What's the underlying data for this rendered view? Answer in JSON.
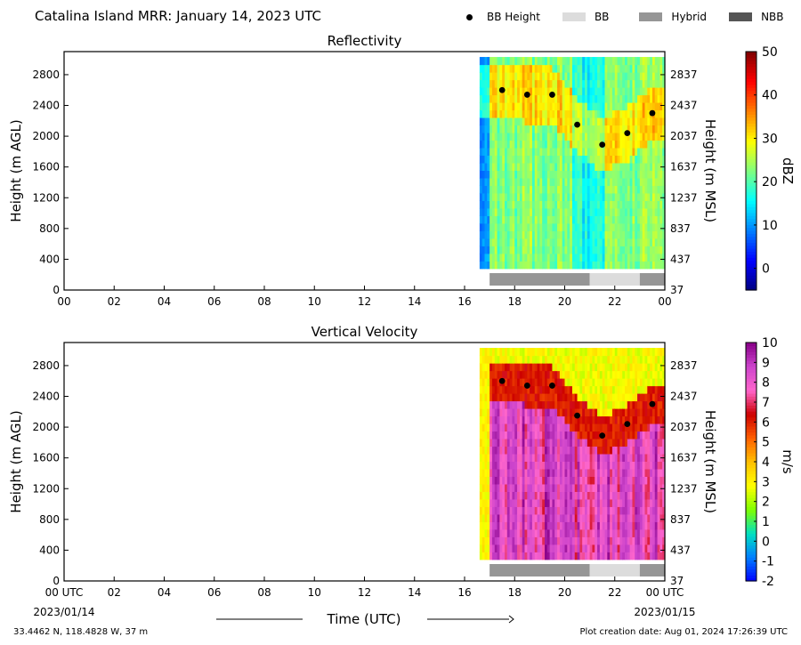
{
  "header": {
    "title": "Catalina Island MRR:  January 14, 2023 UTC"
  },
  "legend": [
    {
      "label": "BB Height",
      "kind": "dot",
      "color": "#000000"
    },
    {
      "label": "BB",
      "kind": "swatch",
      "color": "#dcdcdc"
    },
    {
      "label": "Hybrid",
      "kind": "swatch",
      "color": "#969696"
    },
    {
      "label": "NBB",
      "kind": "swatch",
      "color": "#555555"
    }
  ],
  "footer": {
    "location": "33.4462 N, 118.4828 W, 37 m",
    "created": "Plot creation date: Aug 01, 2024 17:26:39 UTC",
    "xlabel": "Time (UTC)",
    "start_label": "00 UTC",
    "start_date": "2023/01/14",
    "end_label": "00 UTC",
    "end_date": "2023/01/15"
  },
  "chart_data": [
    {
      "type": "heatmap",
      "title": "Reflectivity",
      "ylabel": "Height (m AGL)",
      "ylabel_right": "Height (m MSL)",
      "colorbar_label": "dBZ",
      "colorbar_ticks": [
        0,
        10,
        20,
        30,
        40,
        50
      ],
      "colorbar_range": [
        -5,
        50
      ],
      "colors": [
        "#00007f",
        "#0000ff",
        "#007fff",
        "#00ffff",
        "#7fff7f",
        "#ffff00",
        "#ff7f00",
        "#ff0000",
        "#7f0000"
      ],
      "x_ticks": [
        "00",
        "02",
        "04",
        "06",
        "08",
        "10",
        "12",
        "14",
        "16",
        "18",
        "20",
        "22",
        "00"
      ],
      "y_ticks": [
        0,
        400,
        800,
        1200,
        1600,
        2000,
        2400,
        2800
      ],
      "y_ticks_right": [
        "37",
        "437",
        "837",
        "1237",
        "1637",
        "2037",
        "2437",
        "2837"
      ],
      "xlim": [
        0,
        24
      ],
      "ylim": [
        0,
        3100
      ],
      "data_extent": {
        "x": [
          16.6,
          24
        ],
        "y": [
          280,
          3030
        ]
      },
      "bb_height": [
        {
          "x": 17.5,
          "y": 2600
        },
        {
          "x": 18.5,
          "y": 2540
        },
        {
          "x": 19.5,
          "y": 2540
        },
        {
          "x": 20.5,
          "y": 2150
        },
        {
          "x": 21.5,
          "y": 1890
        },
        {
          "x": 22.5,
          "y": 2040
        },
        {
          "x": 23.5,
          "y": 2300
        }
      ],
      "bb_type": [
        {
          "start": 17,
          "end": 21,
          "type": "Hybrid"
        },
        {
          "start": 21,
          "end": 23,
          "type": "BB"
        },
        {
          "start": 23,
          "end": 24,
          "type": "Hybrid"
        }
      ]
    },
    {
      "type": "heatmap",
      "title": "Vertical Velocity",
      "ylabel": "Height (m AGL)",
      "ylabel_right": "Height (m MSL)",
      "colorbar_label": "m/s",
      "colorbar_ticks": [
        -2,
        -1,
        0,
        1,
        2,
        3,
        4,
        5,
        6,
        7,
        8,
        9,
        10
      ],
      "colorbar_range": [
        -2,
        10
      ],
      "colors": [
        "#0000ff",
        "#007fff",
        "#00e0c0",
        "#7fff00",
        "#ffff00",
        "#ffc000",
        "#ff6000",
        "#cc0000",
        "#ff66cc",
        "#cc44cc",
        "#880088"
      ],
      "x_ticks": [
        "00 UTC",
        "02",
        "04",
        "06",
        "08",
        "10",
        "12",
        "14",
        "16",
        "18",
        "20",
        "22",
        "00 UTC"
      ],
      "y_ticks": [
        0,
        400,
        800,
        1200,
        1600,
        2000,
        2400,
        2800
      ],
      "y_ticks_right": [
        "37",
        "437",
        "837",
        "1237",
        "1637",
        "2037",
        "2437",
        "2837"
      ],
      "xlim": [
        0,
        24
      ],
      "ylim": [
        0,
        3100
      ],
      "data_extent": {
        "x": [
          16.6,
          24
        ],
        "y": [
          280,
          3030
        ]
      },
      "bb_height": [
        {
          "x": 17.5,
          "y": 2600
        },
        {
          "x": 18.5,
          "y": 2540
        },
        {
          "x": 19.5,
          "y": 2540
        },
        {
          "x": 20.5,
          "y": 2150
        },
        {
          "x": 21.5,
          "y": 1890
        },
        {
          "x": 22.5,
          "y": 2040
        },
        {
          "x": 23.5,
          "y": 2300
        }
      ],
      "bb_type": [
        {
          "start": 17,
          "end": 21,
          "type": "Hybrid"
        },
        {
          "start": 21,
          "end": 23,
          "type": "BB"
        },
        {
          "start": 23,
          "end": 24,
          "type": "Hybrid"
        }
      ]
    }
  ]
}
